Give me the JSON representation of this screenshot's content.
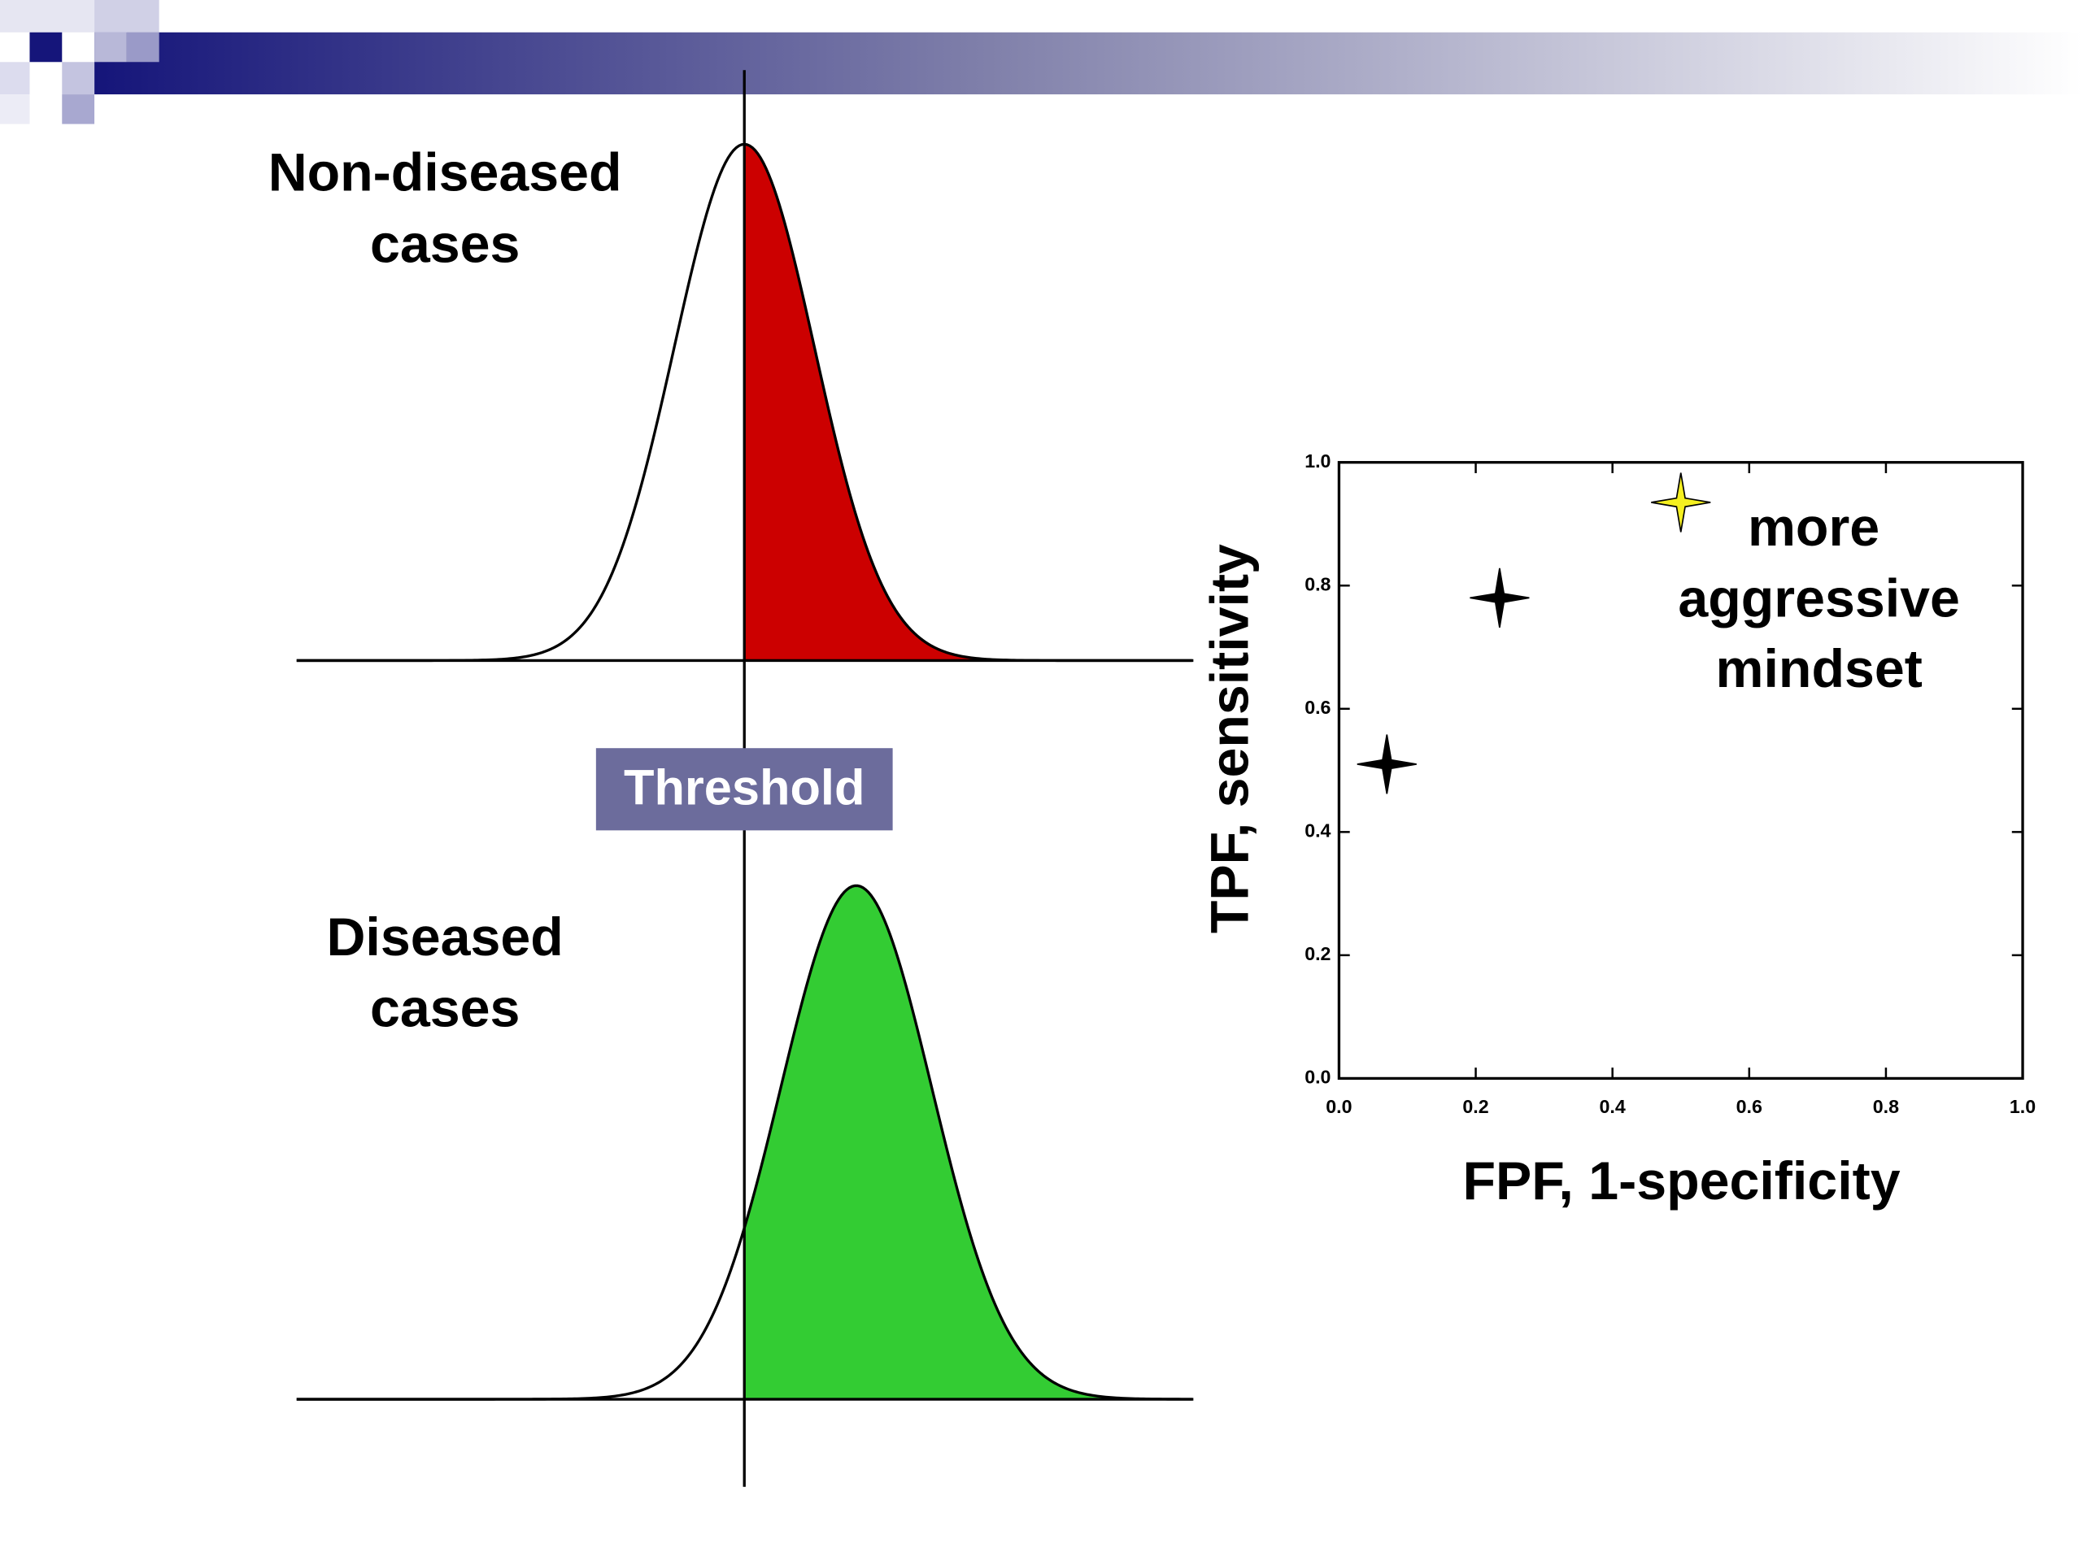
{
  "slide": {
    "non_diseased_label": [
      "Non-diseased",
      "cases"
    ],
    "diseased_label": [
      "Diseased",
      "cases"
    ],
    "threshold_label": "Threshold"
  },
  "chart_data": {
    "type": "scatter",
    "x_label": "FPF, 1-specificity",
    "y_label": "TPF, sensitivity",
    "annotation": [
      "more",
      "aggressive",
      "mindset"
    ],
    "x": [
      0.07,
      0.235,
      0.5
    ],
    "values": [
      0.51,
      0.78,
      0.935
    ],
    "colors": [
      "#000000",
      "#000000",
      "#f5f020"
    ],
    "xlim": [
      0,
      1
    ],
    "ylim": [
      0,
      1
    ],
    "xticks": [
      {
        "value": 0,
        "label": "0.0"
      },
      0.2,
      0.4,
      0.6,
      0.8,
      {
        "value": 1,
        "label": "1.0"
      }
    ],
    "yticks": [
      {
        "value": 0,
        "label": "0.0"
      },
      0.2,
      0.4,
      0.6,
      0.8,
      {
        "value": 1,
        "label": "1.0"
      }
    ]
  }
}
